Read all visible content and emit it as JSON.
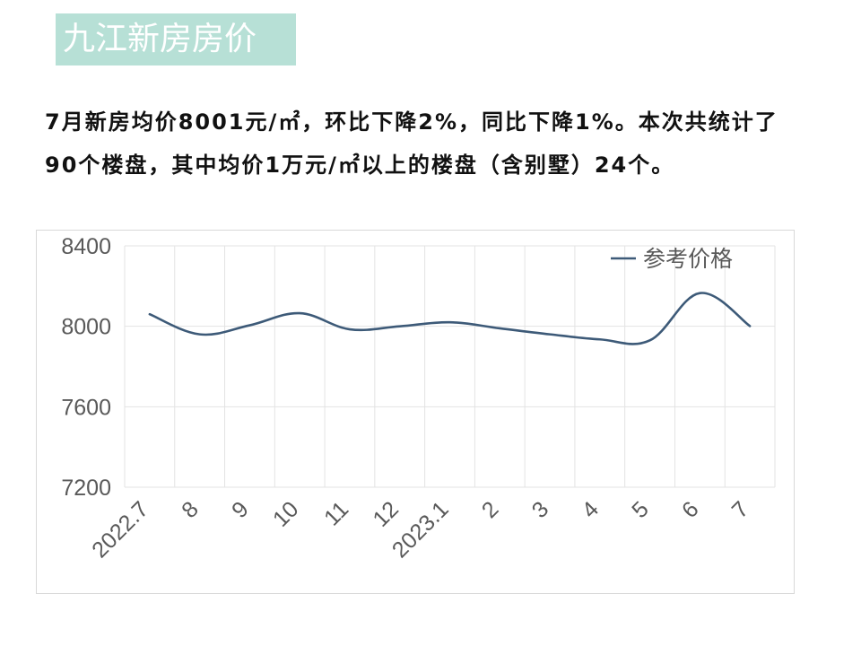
{
  "header": {
    "title": "九江新房房价"
  },
  "summary": {
    "text": "7月新房均价8001元/㎡，环比下降2%，同比下降1%。本次共统计了90个楼盘，其中均价1万元/㎡以上的楼盘（含别墅）24个。"
  },
  "chart_data": {
    "type": "line",
    "title": "",
    "xlabel": "",
    "ylabel": "",
    "categories": [
      "2022.7",
      "8",
      "9",
      "10",
      "11",
      "12",
      "2023.1",
      "2",
      "3",
      "4",
      "5",
      "6",
      "7"
    ],
    "series": [
      {
        "name": "参考价格",
        "color": "#3d5a78",
        "values": [
          8060,
          7960,
          8005,
          8065,
          7985,
          8000,
          8020,
          7990,
          7960,
          7935,
          7930,
          8165,
          8001
        ]
      }
    ],
    "ylim": [
      7200,
      8400
    ],
    "yticks": [
      "8400",
      "8000",
      "7600",
      "7200"
    ],
    "grid": true,
    "legend_position": "top-right",
    "line_style": "smooth"
  }
}
